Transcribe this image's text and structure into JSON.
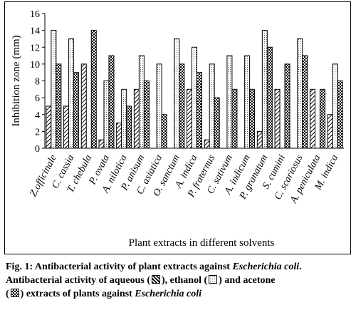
{
  "chart_data": {
    "type": "bar",
    "ylabel": "Inhibition zone (mm)",
    "xlabel": "Plant extracts in different solvents",
    "ylim": [
      0,
      16
    ],
    "yticks": [
      0,
      2,
      4,
      6,
      8,
      10,
      12,
      14,
      16
    ],
    "grid": false,
    "legend_position": "caption",
    "categories": [
      "Z.officinale",
      "C. cassia",
      "T. chebula",
      "P. ovata",
      "A. nilotica",
      "P. anisum",
      "C. asiatica",
      "O. sanctum",
      "A. indica",
      "P. fraternus",
      "C. sativum",
      "A. indicum",
      "P. granatum",
      "S. cumini",
      "C. scariosus",
      "A. peniculata",
      "M. indica"
    ],
    "series": [
      {
        "key": "aqueous",
        "values": [
          5,
          5,
          10,
          1,
          3,
          7,
          0,
          0,
          7,
          1,
          0,
          0,
          2,
          7,
          0,
          7,
          4
        ]
      },
      {
        "key": "ethanol",
        "values": [
          14,
          13,
          0,
          8,
          7,
          11,
          10,
          13,
          12,
          10,
          11,
          11,
          14,
          0,
          13,
          0,
          10
        ]
      },
      {
        "key": "acetone",
        "values": [
          10,
          9,
          14,
          11,
          5,
          8,
          4,
          10,
          9,
          6,
          7,
          7,
          12,
          10,
          11,
          7,
          8
        ]
      }
    ]
  },
  "caption": {
    "line1_bold": "Fig. 1: Antibacterial activity of plant extracts against ",
    "line1_italic": "Escherichia coli",
    "line1_end": ".",
    "line2_a": "Antibacterial activity of aqueous (",
    "line2_b": "), ethanol (",
    "line2_c": ") and acetone",
    "line3_a": "(",
    "line3_b": ") extracts of plants against ",
    "line3_italic": "Escherichia coli"
  }
}
